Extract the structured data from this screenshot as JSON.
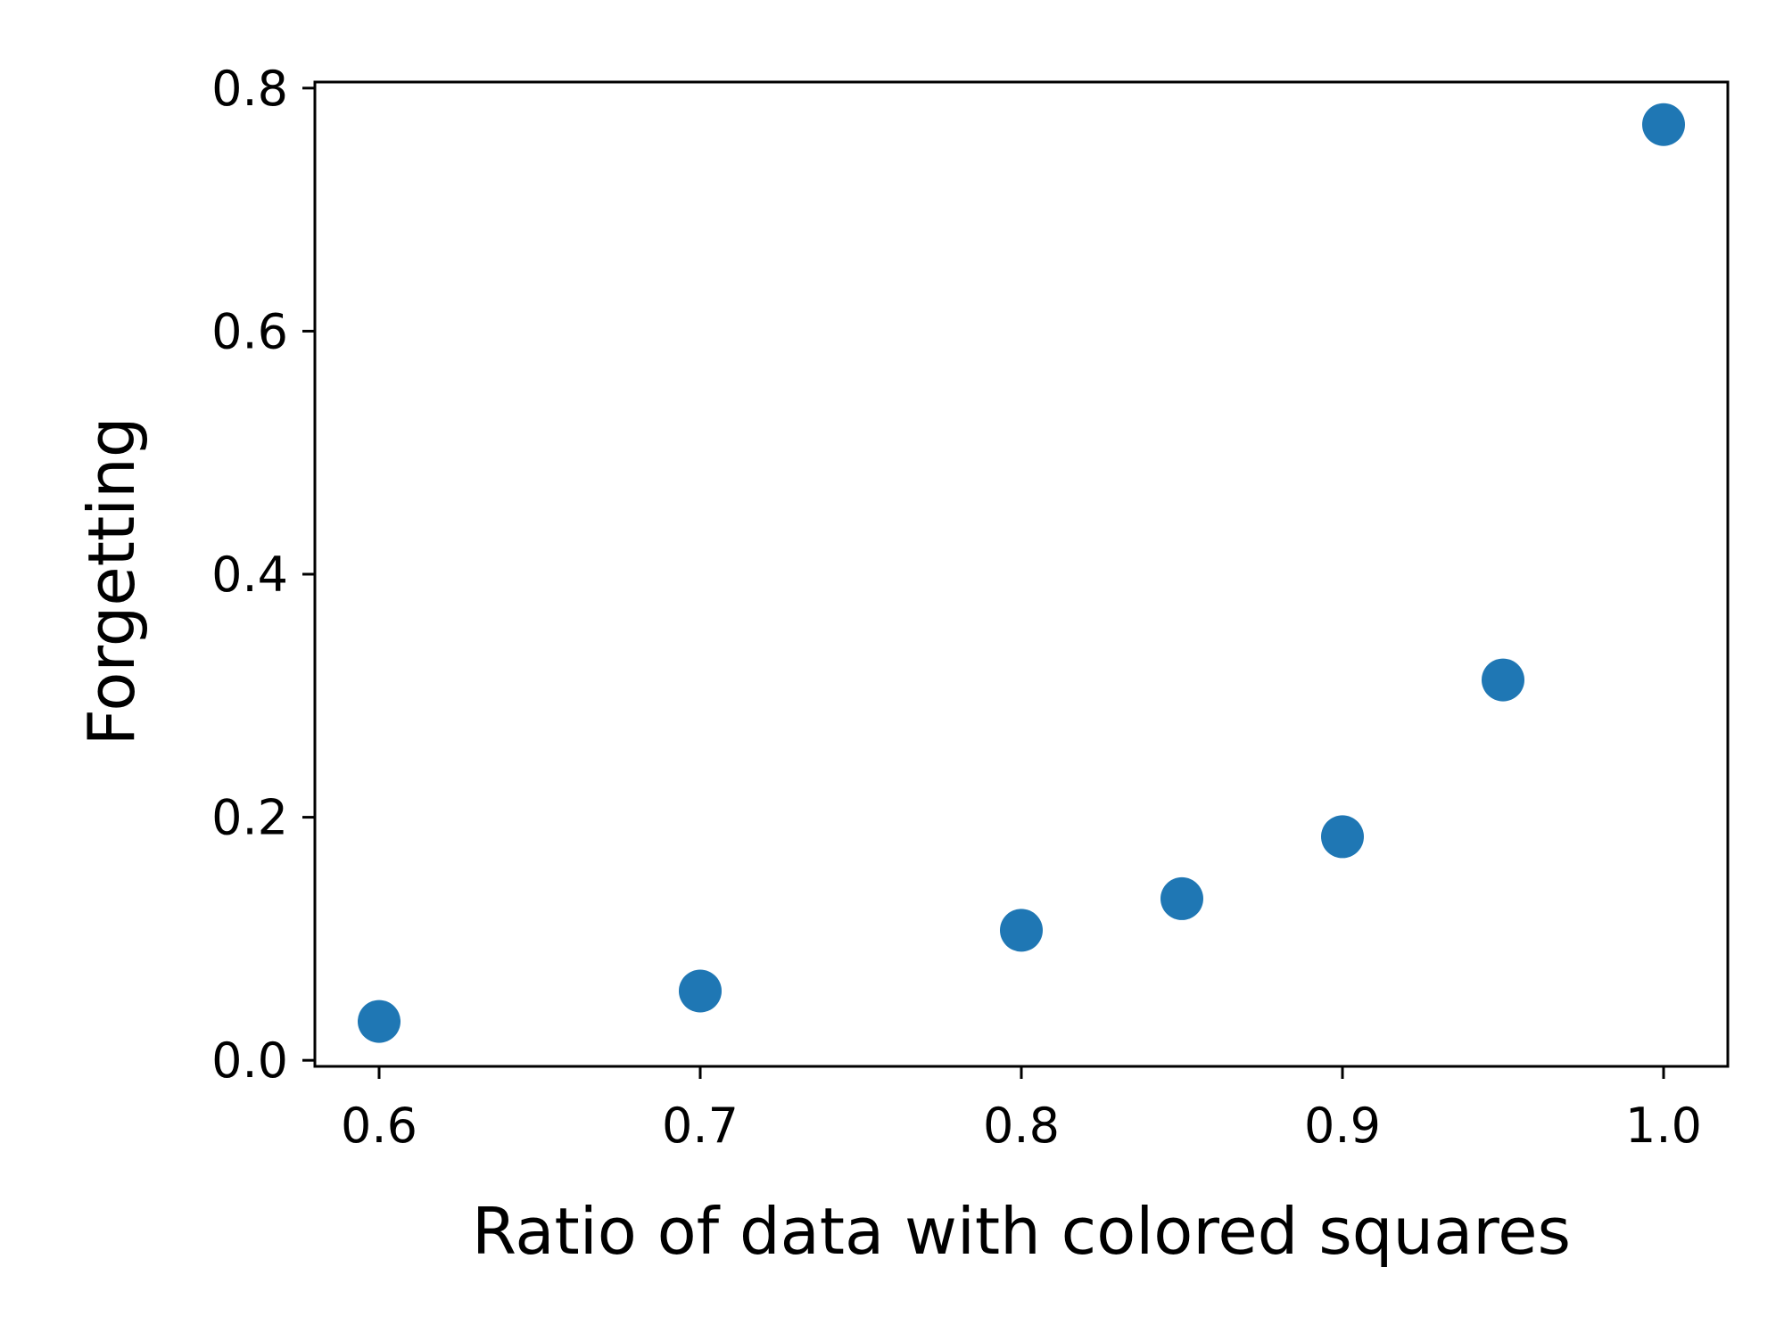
{
  "chart_data": {
    "type": "scatter",
    "title": "",
    "xlabel": "Ratio of data with colored squares",
    "ylabel": "Forgetting",
    "xlim": [
      0.58,
      1.02
    ],
    "ylim": [
      -0.005,
      0.805
    ],
    "xticks": [
      0.6,
      0.7,
      0.8,
      0.9,
      1.0
    ],
    "xtick_labels": [
      "0.6",
      "0.7",
      "0.8",
      "0.9",
      "1.0"
    ],
    "yticks": [
      0.0,
      0.2,
      0.4,
      0.6,
      0.8
    ],
    "ytick_labels": [
      "0.0",
      "0.2",
      "0.4",
      "0.6",
      "0.8"
    ],
    "grid": false,
    "legend": false,
    "colors": {
      "marker": "#1f77b4",
      "axes": "#000000"
    },
    "series": [
      {
        "x": [
          0.6,
          0.7,
          0.8,
          0.85,
          0.9,
          0.95,
          1.0
        ],
        "y": [
          0.032,
          0.057,
          0.107,
          0.133,
          0.184,
          0.313,
          0.77
        ]
      }
    ]
  }
}
